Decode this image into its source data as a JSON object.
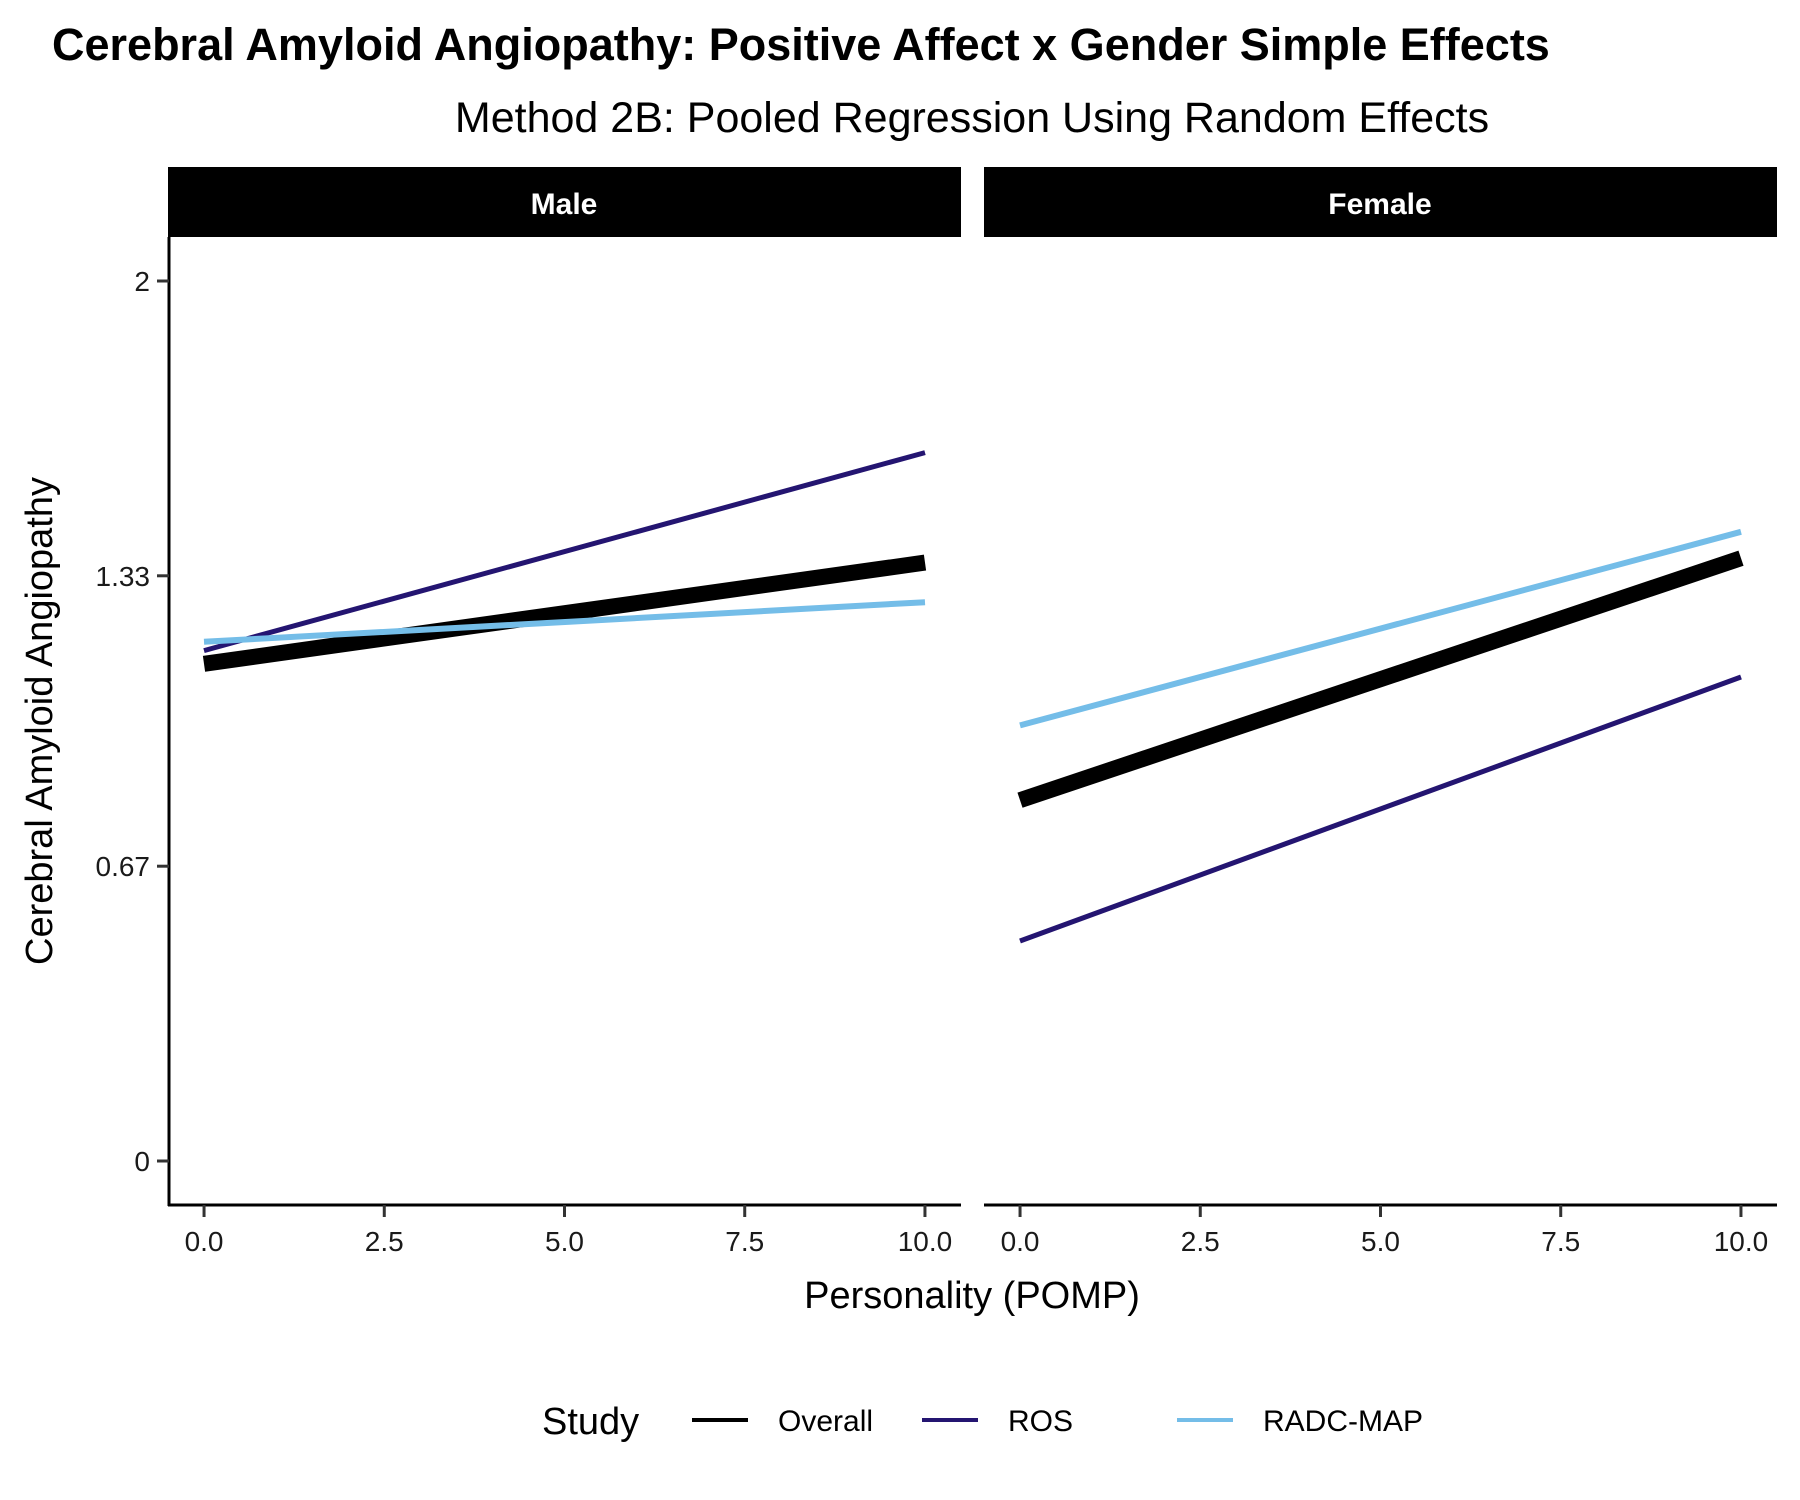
{
  "chart_data": {
    "type": "line",
    "title": "Cerebral Amyloid Angiopathy: Positive Affect x Gender Simple Effects",
    "subtitle": "Method 2B: Pooled Regression Using Random Effects",
    "xlabel": "Personality (POMP)",
    "ylabel": "Cerebral Amyloid Angiopathy",
    "xlim": [
      -0.5,
      10.5
    ],
    "ylim": [
      -0.1,
      2.1
    ],
    "x_ticks": [
      0,
      2.5,
      5,
      7.5,
      10
    ],
    "x_tick_labels": [
      "0.0",
      "2.5",
      "5.0",
      "7.5",
      "10.0"
    ],
    "y_ticks": [
      0,
      0.67,
      1.33,
      2
    ],
    "y_tick_labels": [
      "0",
      "0.67",
      "1.33",
      "2"
    ],
    "grid": false,
    "legend": {
      "title": "Study",
      "position": "bottom",
      "entries": [
        "Overall",
        "ROS",
        "RADC-MAP"
      ]
    },
    "panels": [
      {
        "label": "Male",
        "series": [
          {
            "name": "Overall",
            "color": "#000000",
            "x": [
              0,
              10
            ],
            "y": [
              1.13,
              1.36
            ]
          },
          {
            "name": "ROS",
            "color": "#241571",
            "x": [
              0,
              10
            ],
            "y": [
              1.16,
              1.61
            ]
          },
          {
            "name": "RADC-MAP",
            "color": "#74bde8",
            "x": [
              0,
              10
            ],
            "y": [
              1.18,
              1.27
            ]
          }
        ]
      },
      {
        "label": "Female",
        "series": [
          {
            "name": "Overall",
            "color": "#000000",
            "x": [
              0,
              10
            ],
            "y": [
              0.82,
              1.37
            ]
          },
          {
            "name": "ROS",
            "color": "#241571",
            "x": [
              0,
              10
            ],
            "y": [
              0.5,
              1.1
            ]
          },
          {
            "name": "RADC-MAP",
            "color": "#74bde8",
            "x": [
              0,
              10
            ],
            "y": [
              0.99,
              1.43
            ]
          }
        ]
      }
    ]
  }
}
